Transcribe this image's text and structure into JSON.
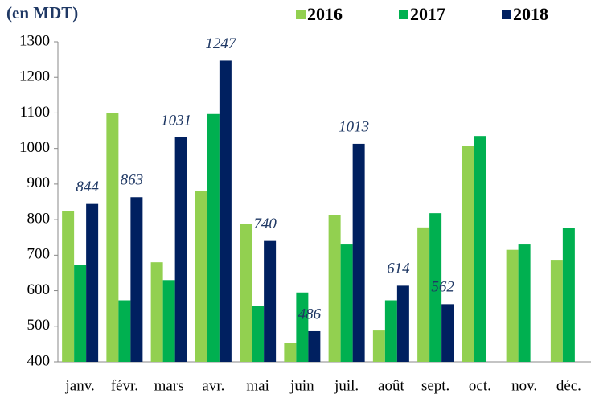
{
  "chart_data": {
    "type": "bar",
    "title": "(en MDT)",
    "categories": [
      "janv.",
      "févr.",
      "mars",
      "avr.",
      "mai",
      "juin",
      "juil.",
      "août",
      "sept.",
      "oct.",
      "nov.",
      "déc."
    ],
    "series": [
      {
        "name": "2016",
        "color": "#92d050",
        "show_labels": false,
        "values": [
          825,
          1100,
          680,
          880,
          787,
          452,
          812,
          488,
          778,
          1007,
          715,
          687
        ]
      },
      {
        "name": "2017",
        "color": "#00b050",
        "show_labels": false,
        "values": [
          672,
          573,
          630,
          1097,
          557,
          595,
          730,
          573,
          818,
          1035,
          730,
          777
        ]
      },
      {
        "name": "2018",
        "color": "#002060",
        "show_labels": true,
        "values": [
          844,
          863,
          1031,
          1247,
          740,
          486,
          1013,
          614,
          562,
          null,
          null,
          null
        ]
      }
    ],
    "ylim": [
      400,
      1300
    ],
    "yticks": [
      400,
      500,
      600,
      700,
      800,
      900,
      1000,
      1100,
      1200,
      1300
    ],
    "grid": false
  }
}
